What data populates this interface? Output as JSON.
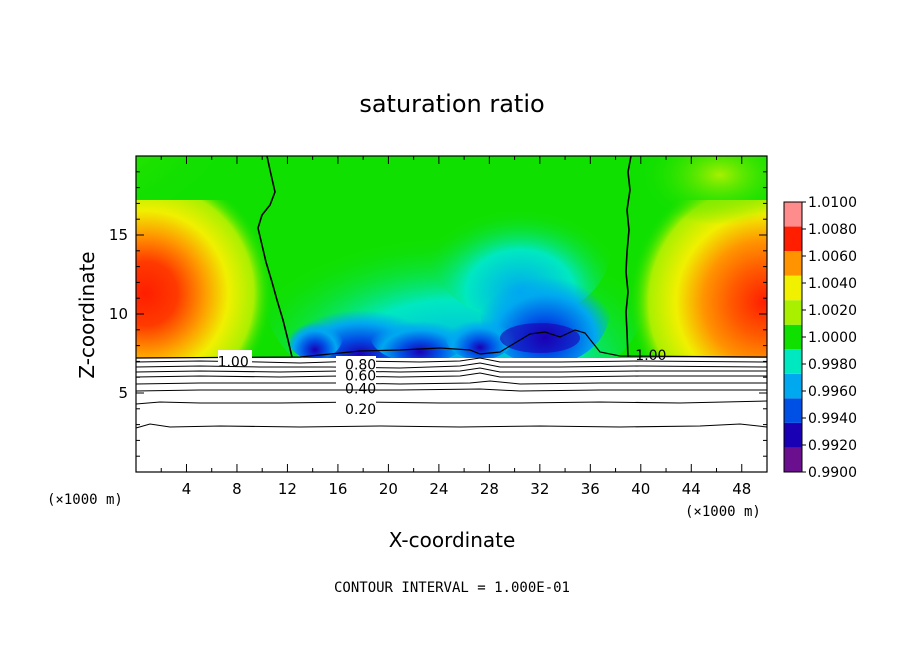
{
  "chart_data": {
    "type": "heatmap",
    "title": "saturation ratio",
    "xlabel": "X-coordinate",
    "ylabel": "Z-coordinate",
    "x_unit_label": "(×1000 m)",
    "x_unit_label_right": "(×1000 m)",
    "xlim": [
      0,
      50
    ],
    "ylim": [
      0,
      20
    ],
    "x_ticks": [
      4,
      8,
      12,
      16,
      20,
      24,
      28,
      32,
      36,
      40,
      44,
      48
    ],
    "y_ticks": [
      5,
      10,
      15
    ],
    "footer": "CONTOUR INTERVAL = 1.000E-01",
    "colorbar": {
      "levels": [
        0.99,
        0.992,
        0.994,
        0.996,
        0.998,
        1.0,
        1.002,
        1.004,
        1.006,
        1.008,
        1.01
      ],
      "labels": [
        "1.0100",
        "1.0080",
        "1.0060",
        "1.0040",
        "1.0020",
        "1.0000",
        "0.9980",
        "0.9960",
        "0.9940",
        "0.9920",
        "0.9900"
      ],
      "colors": [
        "#6a0f8e",
        "#1a00b4",
        "#0050e6",
        "#00a8f0",
        "#00e8c0",
        "#10e000",
        "#a8f000",
        "#f0f000",
        "#ff9400",
        "#ff1e00",
        "#ff8c8c"
      ]
    },
    "contour_labels": [
      {
        "text": "1.00",
        "x": 7.7,
        "z": 7.0
      },
      {
        "text": "1.00",
        "x": 40.8,
        "z": 7.4
      },
      {
        "text": "0.80",
        "x": 17.8,
        "z": 6.8
      },
      {
        "text": "0.60",
        "x": 17.8,
        "z": 6.1
      },
      {
        "text": "0.40",
        "x": 17.8,
        "z": 5.3
      },
      {
        "text": "0.20",
        "x": 17.8,
        "z": 4.0
      }
    ]
  }
}
